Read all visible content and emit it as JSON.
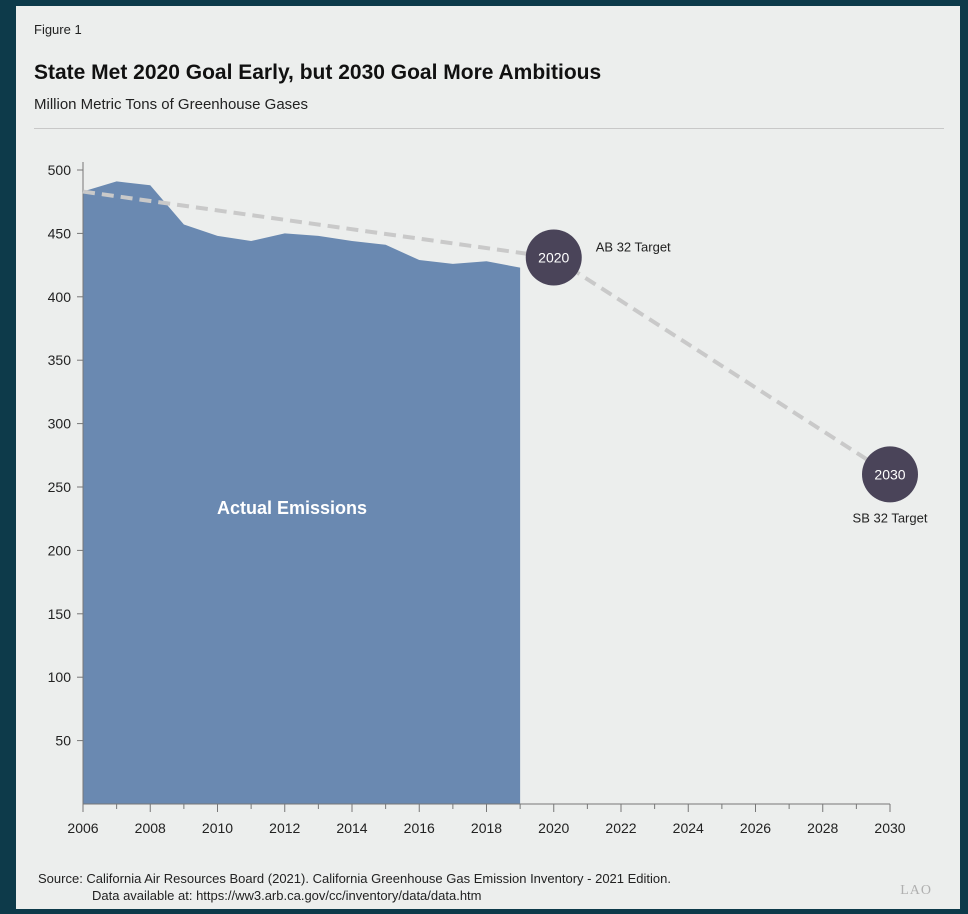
{
  "figure_label": "Figure 1",
  "source": {
    "line1": "Source: California Air Resources Board (2021). California Greenhouse Gas Emission Inventory - 2021 Edition.",
    "line2": "Data available at: https://ww3.arb.ca.gov/cc/inventory/data/data.htm"
  },
  "logo": "LAO",
  "colors": {
    "area": "#6a89b1",
    "target_circle": "#4a4459",
    "dash": "#c9c9c9",
    "background": "#eceeed",
    "frame": "#0d3a4a"
  },
  "chart_data": {
    "type": "area",
    "title": "State Met 2020 Goal Early, but 2030 Goal More Ambitious",
    "subtitle": "Million Metric Tons of Greenhouse Gases",
    "xlim": [
      2006,
      2030
    ],
    "ylim": [
      0,
      500
    ],
    "x_ticks": [
      "2006",
      "2008",
      "2010",
      "2012",
      "2014",
      "2016",
      "2018",
      "2020",
      "2022",
      "2024",
      "2026",
      "2028",
      "2030"
    ],
    "y_ticks": [
      "50",
      "100",
      "150",
      "200",
      "250",
      "300",
      "350",
      "400",
      "450",
      "500"
    ],
    "series": [
      {
        "name": "Actual Emissions",
        "x": [
          2006,
          2007,
          2008,
          2009,
          2010,
          2011,
          2012,
          2013,
          2014,
          2015,
          2016,
          2017,
          2018,
          2019
        ],
        "values": [
          483,
          491,
          488,
          457,
          448,
          444,
          450,
          448,
          444,
          441,
          429,
          426,
          428,
          423
        ]
      }
    ],
    "target_line": {
      "x": [
        2006,
        2020,
        2030
      ],
      "values": [
        483,
        431,
        260
      ]
    },
    "targets": [
      {
        "year_label": "2020",
        "x": 2020,
        "value": 431,
        "label": "AB 32 Target"
      },
      {
        "year_label": "2030",
        "x": 2030,
        "value": 260,
        "label": "SB 32 Target"
      }
    ]
  }
}
